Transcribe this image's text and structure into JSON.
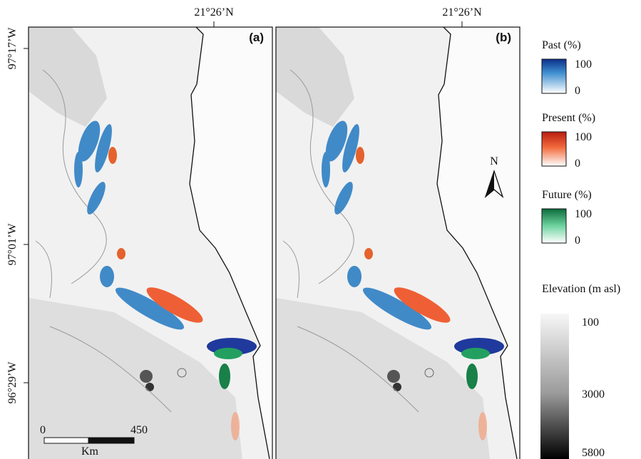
{
  "panels": [
    {
      "label": "(a)",
      "top_coordinate": "21°26’N"
    },
    {
      "label": "(b)",
      "top_coordinate": "21°26’N"
    }
  ],
  "left_coordinates": [
    "97°17’W",
    "97°01’W",
    "96°29’W"
  ],
  "scale_bar": {
    "start": "0",
    "end": "450",
    "unit": "Km"
  },
  "north_arrow": "N",
  "legend": [
    {
      "title": "Past (%)",
      "max": "100",
      "min": "0"
    },
    {
      "title": "Present (%)",
      "max": "100",
      "min": "0"
    },
    {
      "title": "Future (%)",
      "max": "100",
      "min": "0"
    }
  ],
  "elevation": {
    "title": "Elevation (m asl)",
    "labels": [
      "100",
      "3000",
      "5800"
    ]
  }
}
